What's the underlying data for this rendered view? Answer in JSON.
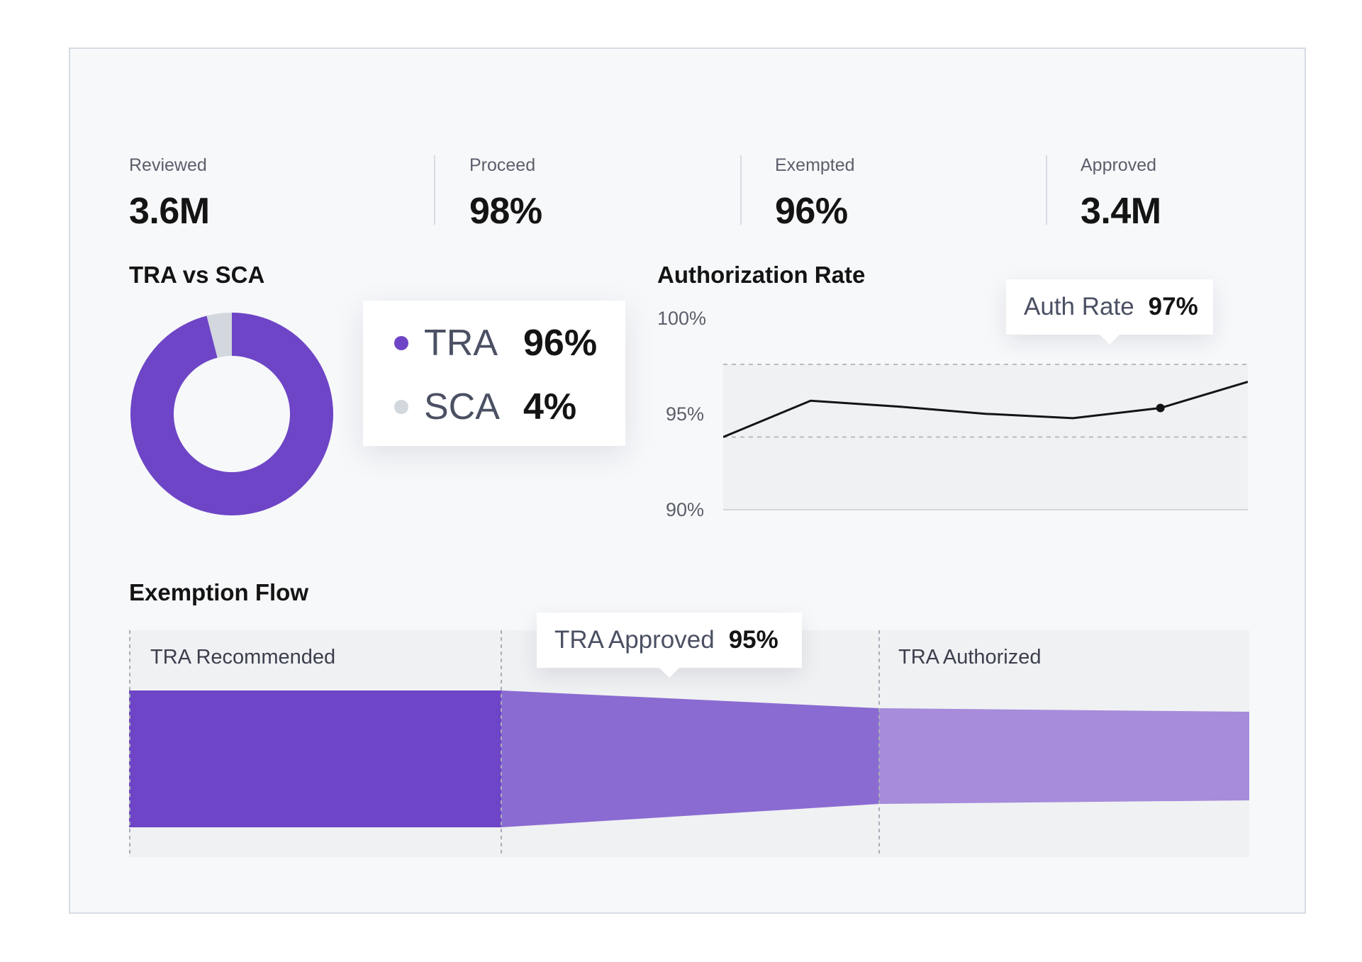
{
  "stats": [
    {
      "label": "Reviewed",
      "value": "3.6M"
    },
    {
      "label": "Proceed",
      "value": "98%"
    },
    {
      "label": "Exempted",
      "value": "96%"
    },
    {
      "label": "Approved",
      "value": "3.4M"
    }
  ],
  "tra_sca": {
    "title": "TRA vs SCA",
    "legend": [
      {
        "name": "TRA",
        "pct": "96%",
        "color": "#6e45c6"
      },
      {
        "name": "SCA",
        "pct": "4%",
        "color": "#d3d7de"
      }
    ]
  },
  "auth_rate": {
    "title": "Authorization Rate",
    "tooltip": {
      "label": "Auth Rate",
      "value": "97%"
    }
  },
  "exemption_flow": {
    "title": "Exemption Flow",
    "stages": [
      "TRA Recommended",
      "TRA Approved",
      "TRA Authorized"
    ],
    "tooltip": {
      "label": "TRA Approved",
      "value": "95%"
    },
    "colors": [
      "#6e45c6",
      "#8a6bd1",
      "#a68cdb"
    ]
  },
  "chart_data": [
    {
      "type": "pie",
      "title": "TRA vs SCA",
      "categories": [
        "TRA",
        "SCA"
      ],
      "values": [
        96,
        4
      ]
    },
    {
      "type": "line",
      "title": "Authorization Rate",
      "x": [
        1,
        2,
        3,
        4,
        5,
        6,
        7
      ],
      "values": [
        95.0,
        97.5,
        97.1,
        96.6,
        96.3,
        97.0,
        98.8
      ],
      "ylim": [
        90,
        100
      ],
      "yticks": [
        "100%",
        "95%",
        "90%"
      ],
      "grid": "dashed at 100% and 95%",
      "highlight": {
        "x": 6,
        "label": "Auth Rate",
        "value": "97%"
      }
    }
  ]
}
